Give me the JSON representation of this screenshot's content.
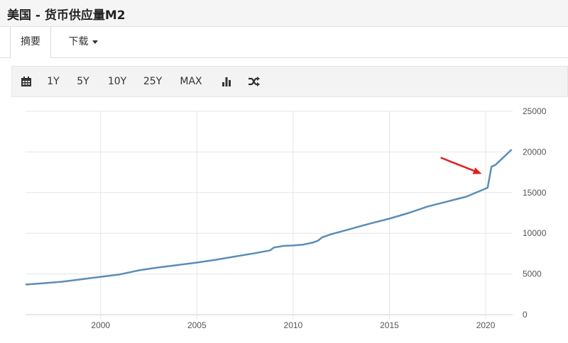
{
  "header": {
    "title": "美国 - 货币供应量M2"
  },
  "tabs": [
    {
      "label": "摘要",
      "active": true
    },
    {
      "label": "下载",
      "active": false,
      "has_dropdown": true
    }
  ],
  "toolbar": {
    "calendar_icon": "calendar-icon",
    "ranges": [
      "1Y",
      "5Y",
      "10Y",
      "25Y",
      "MAX"
    ],
    "bar_chart_icon": "bar-chart-icon",
    "shuffle_icon": "shuffle-icon"
  },
  "colors": {
    "line": "#5b8db8",
    "grid": "#e6e6e6",
    "arrow": "#e02020",
    "toolbar_bg": "#f3f3f3"
  },
  "chart_data": {
    "type": "line",
    "title": "",
    "xlabel": "",
    "ylabel": "",
    "xlim": [
      1996.1,
      2021.4
    ],
    "ylim": [
      0,
      25000
    ],
    "x_ticks": [
      "2000",
      "2005",
      "2010",
      "2015",
      "2020"
    ],
    "y_ticks": [
      "0",
      "5000",
      "10000",
      "15000",
      "20000",
      "25000"
    ],
    "grid": true,
    "annotation": {
      "type": "arrow",
      "target_x": 2019.8,
      "target_y": 17300
    },
    "series": [
      {
        "x": [
          1996.1,
          1997,
          1998,
          1999,
          2000,
          2001,
          2002,
          2003,
          2004,
          2005,
          2006,
          2007,
          2008,
          2008.8,
          2009,
          2009.5,
          2010,
          2010.5,
          2011,
          2011.3,
          2011.5,
          2012,
          2013,
          2014,
          2015,
          2016,
          2017,
          2018,
          2019,
          2019.8,
          2020.1,
          2020.3,
          2020.5,
          2021,
          2021.35
        ],
        "y": [
          3700,
          3850,
          4050,
          4350,
          4650,
          4950,
          5450,
          5800,
          6100,
          6400,
          6750,
          7150,
          7550,
          7900,
          8250,
          8450,
          8500,
          8600,
          8850,
          9100,
          9500,
          9900,
          10550,
          11200,
          11800,
          12500,
          13300,
          13900,
          14500,
          15300,
          15600,
          18200,
          18400,
          19500,
          20300
        ]
      }
    ]
  }
}
